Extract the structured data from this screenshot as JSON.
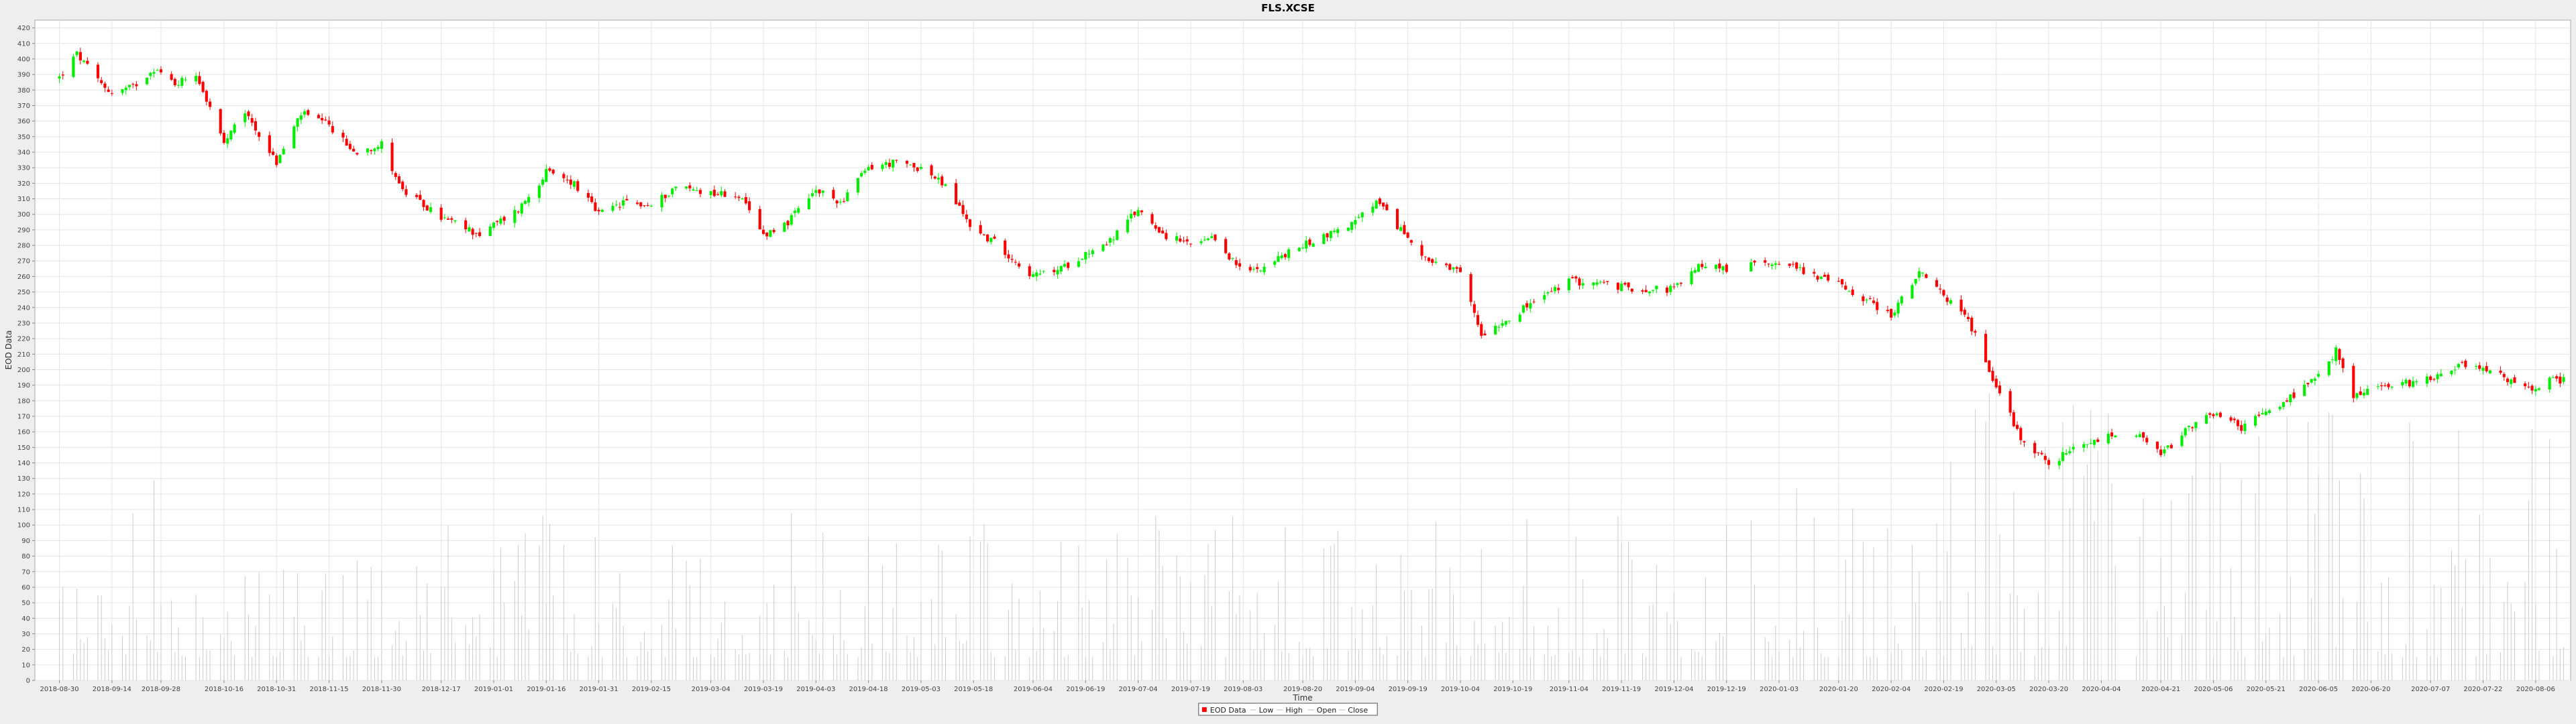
{
  "chart_data": {
    "type": "candlestick",
    "title": "FLS.XCSE",
    "xlabel": "Time",
    "ylabel": "EOD Data",
    "ylim": [
      0,
      425
    ],
    "y_ticks": [
      0,
      10,
      20,
      30,
      40,
      50,
      60,
      70,
      80,
      90,
      100,
      110,
      120,
      130,
      140,
      150,
      160,
      170,
      180,
      190,
      200,
      210,
      220,
      230,
      240,
      250,
      260,
      270,
      280,
      290,
      300,
      310,
      320,
      330,
      340,
      350,
      360,
      370,
      380,
      390,
      400,
      410,
      420
    ],
    "x_ticks": [
      "2018-08-30",
      "2018-09-14",
      "2018-09-28",
      "2018-10-16",
      "2018-10-31",
      "2018-11-15",
      "2018-11-30",
      "2018-12-17",
      "2019-01-01",
      "2019-01-16",
      "2019-01-31",
      "2019-02-15",
      "2019-03-04",
      "2019-03-19",
      "2019-04-03",
      "2019-04-18",
      "2019-05-03",
      "2019-05-18",
      "2019-06-04",
      "2019-06-19",
      "2019-07-04",
      "2019-07-19",
      "2019-08-03",
      "2019-08-20",
      "2019-09-04",
      "2019-09-19",
      "2019-10-04",
      "2019-10-19",
      "2019-11-04",
      "2019-11-19",
      "2019-12-04",
      "2019-12-19",
      "2020-01-03",
      "2020-01-20",
      "2020-02-04",
      "2020-02-19",
      "2020-03-05",
      "2020-03-20",
      "2020-04-04",
      "2020-04-21",
      "2020-05-06",
      "2020-05-21",
      "2020-06-05",
      "2020-06-20",
      "2020-07-07",
      "2020-07-22",
      "2020-08-06"
    ],
    "legend": {
      "placement": "bottom-center",
      "items": [
        {
          "label": "EOD Data",
          "color": "#ff0000"
        },
        {
          "label": "Low",
          "color": "#bbbbbb"
        },
        {
          "label": "High",
          "color": "#bbbbbb"
        },
        {
          "label": "Open",
          "color": "#bbbbbb"
        },
        {
          "label": "Close",
          "color": "#bbbbbb"
        }
      ]
    },
    "up_color": "#00ee00",
    "down_color": "#ff0000",
    "volume_color": "#cccccc",
    "grid": true,
    "price_anchors": [
      [
        "2018-08-30",
        388
      ],
      [
        "2018-09-04",
        403
      ],
      [
        "2018-09-10",
        386
      ],
      [
        "2018-09-14",
        378
      ],
      [
        "2018-09-20",
        382
      ],
      [
        "2018-09-26",
        394
      ],
      [
        "2018-10-02",
        384
      ],
      [
        "2018-10-08",
        391
      ],
      [
        "2018-10-16",
        345
      ],
      [
        "2018-10-22",
        366
      ],
      [
        "2018-10-31",
        333
      ],
      [
        "2018-11-07",
        365
      ],
      [
        "2018-11-15",
        357
      ],
      [
        "2018-11-22",
        340
      ],
      [
        "2018-11-30",
        345
      ],
      [
        "2018-12-06",
        315
      ],
      [
        "2018-12-17",
        298
      ],
      [
        "2018-12-28",
        287
      ],
      [
        "2019-01-01",
        293
      ],
      [
        "2019-01-08",
        303
      ],
      [
        "2019-01-16",
        327
      ],
      [
        "2019-01-24",
        320
      ],
      [
        "2019-01-31",
        300
      ],
      [
        "2019-02-08",
        308
      ],
      [
        "2019-02-15",
        305
      ],
      [
        "2019-02-22",
        318
      ],
      [
        "2019-03-04",
        314
      ],
      [
        "2019-03-12",
        312
      ],
      [
        "2019-03-19",
        287
      ],
      [
        "2019-03-26",
        295
      ],
      [
        "2019-04-03",
        315
      ],
      [
        "2019-04-10",
        308
      ],
      [
        "2019-04-18",
        330
      ],
      [
        "2019-04-25",
        333
      ],
      [
        "2019-05-03",
        330
      ],
      [
        "2019-05-10",
        318
      ],
      [
        "2019-05-18",
        290
      ],
      [
        "2019-05-24",
        282
      ],
      [
        "2019-06-04",
        260
      ],
      [
        "2019-06-12",
        265
      ],
      [
        "2019-06-19",
        275
      ],
      [
        "2019-06-26",
        283
      ],
      [
        "2019-07-04",
        303
      ],
      [
        "2019-07-12",
        286
      ],
      [
        "2019-07-19",
        280
      ],
      [
        "2019-07-26",
        284
      ],
      [
        "2019-08-03",
        262
      ],
      [
        "2019-08-10",
        268
      ],
      [
        "2019-08-20",
        280
      ],
      [
        "2019-08-27",
        287
      ],
      [
        "2019-09-04",
        295
      ],
      [
        "2019-09-10",
        308
      ],
      [
        "2019-09-19",
        285
      ],
      [
        "2019-09-26",
        268
      ],
      [
        "2019-10-04",
        262
      ],
      [
        "2019-10-10",
        223
      ],
      [
        "2019-10-19",
        235
      ],
      [
        "2019-10-26",
        245
      ],
      [
        "2019-11-04",
        257
      ],
      [
        "2019-11-12",
        256
      ],
      [
        "2019-11-19",
        253
      ],
      [
        "2019-11-26",
        252
      ],
      [
        "2019-12-04",
        252
      ],
      [
        "2019-12-12",
        268
      ],
      [
        "2019-12-19",
        265
      ],
      [
        "2020-01-03",
        270
      ],
      [
        "2020-01-12",
        262
      ],
      [
        "2020-01-20",
        255
      ],
      [
        "2020-01-28",
        245
      ],
      [
        "2020-02-04",
        235
      ],
      [
        "2020-02-12",
        262
      ],
      [
        "2020-02-19",
        248
      ],
      [
        "2020-02-26",
        232
      ],
      [
        "2020-03-05",
        190
      ],
      [
        "2020-03-12",
        156
      ],
      [
        "2020-03-20",
        140
      ],
      [
        "2020-03-27",
        148
      ],
      [
        "2020-04-04",
        155
      ],
      [
        "2020-04-12",
        162
      ],
      [
        "2020-04-21",
        145
      ],
      [
        "2020-04-28",
        160
      ],
      [
        "2020-05-06",
        172
      ],
      [
        "2020-05-14",
        163
      ],
      [
        "2020-05-21",
        172
      ],
      [
        "2020-05-28",
        182
      ],
      [
        "2020-06-05",
        195
      ],
      [
        "2020-06-10",
        212
      ],
      [
        "2020-06-15",
        183
      ],
      [
        "2020-06-20",
        188
      ],
      [
        "2020-06-28",
        190
      ],
      [
        "2020-07-07",
        195
      ],
      [
        "2020-07-15",
        203
      ],
      [
        "2020-07-22",
        202
      ],
      [
        "2020-07-29",
        193
      ],
      [
        "2020-08-06",
        186
      ],
      [
        "2020-08-10",
        195
      ],
      [
        "2020-08-14",
        193
      ]
    ],
    "volume_range": [
      15,
      185
    ],
    "gaps": [
      [
        "2019-12-19",
        "2019-12-26"
      ],
      [
        "2020-04-08",
        "2020-04-14"
      ]
    ]
  }
}
